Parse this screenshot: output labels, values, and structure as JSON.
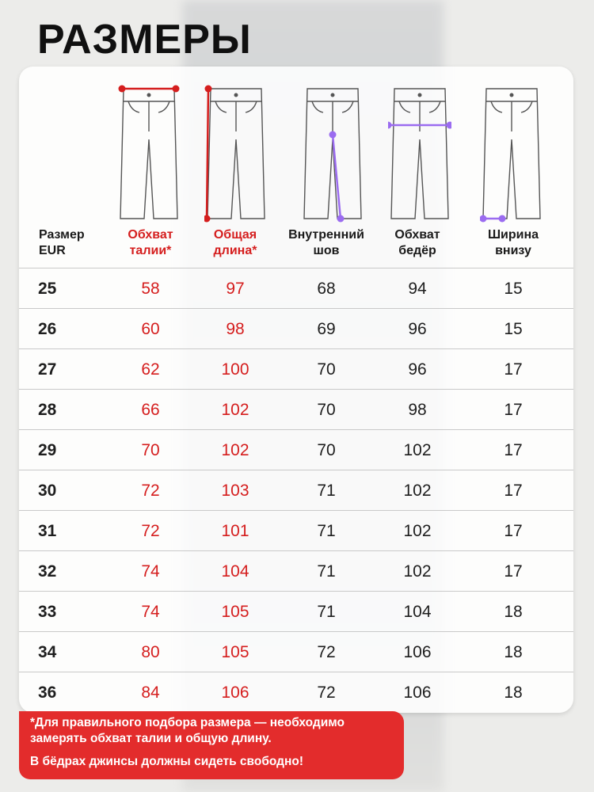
{
  "title": "РАЗМЕРЫ",
  "colors": {
    "red": "#d51e1e",
    "purple": "#9b6cf0",
    "note_bg": "#e32c2c"
  },
  "headers": {
    "size_line1": "Размер",
    "size_line2": "EUR",
    "waist_line1": "Обхват",
    "waist_line2": "талии*",
    "length_line1": "Общая",
    "length_line2": "длина*",
    "inseam_line1": "Внутренний",
    "inseam_line2": "шов",
    "hips_line1": "Обхват",
    "hips_line2": "бедёр",
    "width_line1": "Ширина",
    "width_line2": "внизу"
  },
  "diagrams": [
    "waist-measure-icon",
    "length-measure-icon",
    "inseam-measure-icon",
    "hips-measure-icon",
    "leg-width-measure-icon"
  ],
  "rows": [
    {
      "size": "25",
      "waist": "58",
      "length": "97",
      "inseam": "68",
      "hips": "94",
      "width": "15"
    },
    {
      "size": "26",
      "waist": "60",
      "length": "98",
      "inseam": "69",
      "hips": "96",
      "width": "15"
    },
    {
      "size": "27",
      "waist": "62",
      "length": "100",
      "inseam": "70",
      "hips": "96",
      "width": "17"
    },
    {
      "size": "28",
      "waist": "66",
      "length": "102",
      "inseam": "70",
      "hips": "98",
      "width": "17"
    },
    {
      "size": "29",
      "waist": "70",
      "length": "102",
      "inseam": "70",
      "hips": "102",
      "width": "17"
    },
    {
      "size": "30",
      "waist": "72",
      "length": "103",
      "inseam": "71",
      "hips": "102",
      "width": "17"
    },
    {
      "size": "31",
      "waist": "72",
      "length": "101",
      "inseam": "71",
      "hips": "102",
      "width": "17"
    },
    {
      "size": "32",
      "waist": "74",
      "length": "104",
      "inseam": "71",
      "hips": "102",
      "width": "17"
    },
    {
      "size": "33",
      "waist": "74",
      "length": "105",
      "inseam": "71",
      "hips": "104",
      "width": "18"
    },
    {
      "size": "34",
      "waist": "80",
      "length": "105",
      "inseam": "72",
      "hips": "106",
      "width": "18"
    },
    {
      "size": "36",
      "waist": "84",
      "length": "106",
      "inseam": "72",
      "hips": "106",
      "width": "18"
    }
  ],
  "note": {
    "line1": "*Для правильного подбора размера — необходимо",
    "line2": "замерять обхват талии и общую длину.",
    "line3": "В бёдрах джинсы должны сидеть свободно!"
  }
}
